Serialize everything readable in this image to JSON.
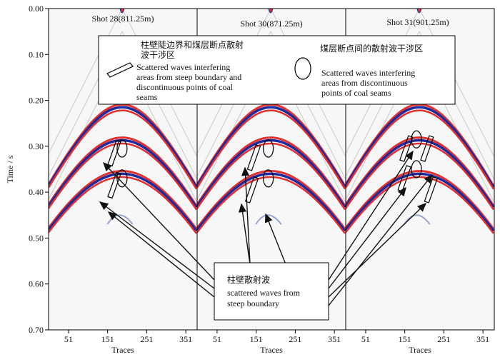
{
  "chart_data": {
    "type": "other",
    "ylabel": "Time / s",
    "xlabel": "Traces",
    "ylim": [
      0.0,
      0.7
    ],
    "y_ticks": [
      "0.00",
      "0.10",
      "0.20",
      "0.30",
      "0.40",
      "0.50",
      "0.60",
      "0.70"
    ],
    "x_ticks": [
      "51",
      "151",
      "251",
      "351"
    ],
    "panels": [
      {
        "title": "Shot 28(811.25m)",
        "apex_time": 0.215,
        "ring_trace": 188,
        "ring_times": [
          0.305,
          0.37
        ],
        "parallelograms": [
          {
            "trace": 168,
            "time": 0.315
          },
          {
            "trace": 168,
            "time": 0.385
          }
        ]
      },
      {
        "title": "Shot 30(871.25m)",
        "apex_time": 0.215,
        "ring_trace": 182,
        "ring_times": [
          0.305,
          0.37
        ],
        "parallelograms": [
          {
            "trace": 145,
            "time": 0.325
          },
          {
            "trace": 140,
            "time": 0.395
          }
        ]
      },
      {
        "title": "Shot 31(901.25m)",
        "apex_time": 0.215,
        "ring_trace": 181,
        "ring_times": [
          0.285,
          0.35
        ],
        "parallelograms": [
          {
            "trace": 155,
            "time": 0.305
          },
          {
            "trace": 150,
            "time": 0.37
          },
          {
            "trace": 208,
            "time": 0.305
          },
          {
            "trace": 218,
            "time": 0.395
          }
        ]
      }
    ],
    "legend": {
      "parallelogram_cn": "柱壁陡边界和煤层断点散射",
      "parallelogram_cn2": "波干涉区",
      "parallelogram_en": [
        "Scattered  waves  interfering",
        "areas from steep boundary and",
        "discontinuous points of coal",
        "seams"
      ],
      "ellipse_cn": "煤层断点间的散射波干涉区",
      "ellipse_en": [
        "Scattered waves interfering",
        "areas  from  discontinuous",
        " points of coal seams"
      ]
    },
    "annotation": {
      "cn": "柱壁散射波",
      "en": [
        "scattered waves from",
        "steep boundary"
      ]
    }
  }
}
